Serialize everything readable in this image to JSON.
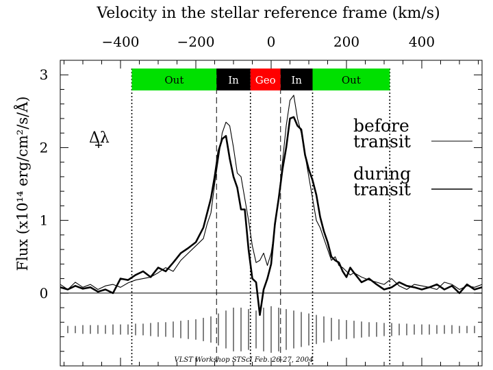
{
  "chart_data": {
    "type": "line",
    "title": "Velocity in the stellar reference frame (km/s)",
    "ylabel": "Flux (x10¹⁴ erg/cm²/s/Å)",
    "xlim": [
      -560,
      560
    ],
    "ylim": [
      -1.0,
      3.2
    ],
    "x_ticks_major": [
      -400,
      -200,
      0,
      200,
      400
    ],
    "x_ticks_minor_step": 50,
    "y_ticks_major": [
      0,
      1,
      2,
      3
    ],
    "y_ticks_minor_step": 0.2,
    "delta_lambda_label": "Δλ",
    "regions": [
      {
        "label": "Out",
        "from": -370,
        "to": -145,
        "color": "#00e000",
        "text_color": "#000000"
      },
      {
        "label": "In",
        "from": -145,
        "to": -55,
        "color": "#000000",
        "text_color": "#ffffff"
      },
      {
        "label": "Geo",
        "from": -55,
        "to": 25,
        "color": "#ff0000",
        "text_color": "#ffffff"
      },
      {
        "label": "In",
        "from": 25,
        "to": 110,
        "color": "#000000",
        "text_color": "#ffffff"
      },
      {
        "label": "Out",
        "from": 110,
        "to": 315,
        "color": "#00e000",
        "text_color": "#000000"
      }
    ],
    "dashed_lines": [
      -145,
      25
    ],
    "dotted_lines": [
      -370,
      -55,
      110,
      315
    ],
    "legend": [
      {
        "label": "before transit",
        "line_1": "before",
        "line_2": "transit"
      },
      {
        "label": "during transit",
        "line_1": "during",
        "line_2": "transit"
      }
    ],
    "series": [
      {
        "name": "before transit",
        "x": [
          -560,
          -540,
          -520,
          -500,
          -480,
          -460,
          -440,
          -420,
          -400,
          -380,
          -360,
          -340,
          -320,
          -300,
          -280,
          -260,
          -240,
          -220,
          -200,
          -180,
          -170,
          -160,
          -150,
          -140,
          -130,
          -120,
          -110,
          -100,
          -90,
          -80,
          -70,
          -60,
          -50,
          -40,
          -30,
          -20,
          -10,
          0,
          10,
          20,
          30,
          40,
          50,
          60,
          70,
          80,
          90,
          100,
          110,
          120,
          130,
          140,
          150,
          160,
          170,
          180,
          190,
          200,
          210,
          220,
          240,
          260,
          280,
          300,
          320,
          340,
          360,
          380,
          400,
          420,
          440,
          460,
          480,
          500,
          520,
          540,
          560
        ],
        "y": [
          0.12,
          0.05,
          0.15,
          0.08,
          0.12,
          0.05,
          0.1,
          0.12,
          0.08,
          0.14,
          0.18,
          0.2,
          0.22,
          0.28,
          0.35,
          0.3,
          0.45,
          0.55,
          0.65,
          0.75,
          0.95,
          1.1,
          1.5,
          1.85,
          2.2,
          2.35,
          2.3,
          2.0,
          1.65,
          1.6,
          1.3,
          1.0,
          0.65,
          0.42,
          0.45,
          0.55,
          0.38,
          0.55,
          0.9,
          1.3,
          1.8,
          2.3,
          2.65,
          2.72,
          2.4,
          2.2,
          1.9,
          1.6,
          1.3,
          1.0,
          0.9,
          0.75,
          0.6,
          0.45,
          0.5,
          0.38,
          0.35,
          0.3,
          0.25,
          0.28,
          0.22,
          0.18,
          0.15,
          0.12,
          0.2,
          0.1,
          0.05,
          0.12,
          0.1,
          0.08,
          0.05,
          0.15,
          0.12,
          0.05,
          0.1,
          0.08,
          0.12
        ]
      },
      {
        "name": "during transit",
        "x": [
          -560,
          -540,
          -520,
          -500,
          -480,
          -460,
          -440,
          -420,
          -400,
          -380,
          -360,
          -340,
          -320,
          -300,
          -280,
          -260,
          -240,
          -220,
          -200,
          -180,
          -170,
          -160,
          -150,
          -140,
          -130,
          -120,
          -110,
          -100,
          -90,
          -80,
          -70,
          -60,
          -50,
          -40,
          -30,
          -20,
          -10,
          0,
          10,
          20,
          30,
          40,
          50,
          60,
          70,
          80,
          90,
          100,
          110,
          120,
          130,
          140,
          150,
          160,
          170,
          180,
          190,
          200,
          210,
          220,
          240,
          260,
          280,
          300,
          320,
          340,
          360,
          380,
          400,
          420,
          440,
          460,
          480,
          500,
          520,
          540,
          560
        ],
        "y": [
          0.08,
          0.05,
          0.1,
          0.06,
          0.08,
          0.02,
          0.05,
          0.0,
          0.2,
          0.18,
          0.25,
          0.3,
          0.22,
          0.35,
          0.3,
          0.42,
          0.55,
          0.62,
          0.7,
          0.9,
          1.1,
          1.3,
          1.6,
          1.95,
          2.12,
          2.16,
          1.85,
          1.6,
          1.45,
          1.15,
          1.15,
          0.6,
          0.2,
          0.15,
          -0.3,
          0.05,
          0.2,
          0.4,
          0.95,
          1.3,
          1.7,
          2.0,
          2.4,
          2.42,
          2.3,
          2.25,
          1.9,
          1.7,
          1.55,
          1.35,
          1.05,
          0.85,
          0.7,
          0.5,
          0.45,
          0.42,
          0.3,
          0.22,
          0.35,
          0.28,
          0.15,
          0.2,
          0.12,
          0.05,
          0.08,
          0.15,
          0.1,
          0.08,
          0.05,
          0.08,
          0.12,
          0.05,
          0.1,
          0.0,
          0.12,
          0.05,
          0.08
        ]
      }
    ],
    "error_bars": {
      "x": [
        -540,
        -520,
        -500,
        -480,
        -460,
        -440,
        -420,
        -400,
        -380,
        -360,
        -340,
        -320,
        -300,
        -280,
        -260,
        -240,
        -220,
        -200,
        -180,
        -160,
        -140,
        -120,
        -100,
        -80,
        -60,
        -40,
        -20,
        0,
        20,
        40,
        60,
        80,
        100,
        120,
        140,
        160,
        180,
        200,
        220,
        240,
        260,
        280,
        300,
        320,
        340,
        360,
        380,
        400,
        420,
        440,
        460,
        480,
        500,
        520,
        540
      ],
      "center": -0.5,
      "half_length": [
        0.05,
        0.05,
        0.06,
        0.06,
        0.06,
        0.06,
        0.07,
        0.07,
        0.07,
        0.08,
        0.08,
        0.09,
        0.1,
        0.1,
        0.11,
        0.12,
        0.13,
        0.14,
        0.16,
        0.18,
        0.22,
        0.26,
        0.3,
        0.3,
        0.28,
        0.26,
        0.3,
        0.32,
        0.3,
        0.28,
        0.26,
        0.24,
        0.22,
        0.2,
        0.18,
        0.16,
        0.14,
        0.13,
        0.12,
        0.11,
        0.1,
        0.1,
        0.09,
        0.09,
        0.08,
        0.08,
        0.07,
        0.07,
        0.07,
        0.06,
        0.06,
        0.06,
        0.05,
        0.05,
        0.05
      ]
    },
    "footer_note": "VLST Workshop    STScI    Feb. 26-27, 2004"
  }
}
